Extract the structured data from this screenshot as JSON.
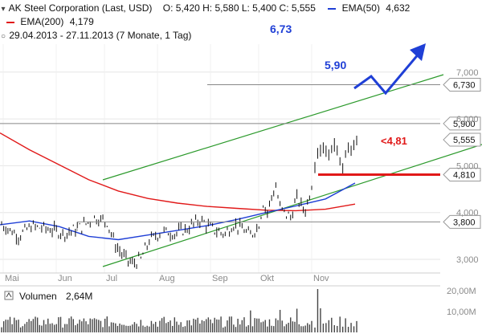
{
  "header": {
    "instrument": "AK Steel Corporation (Last, USD)",
    "ohlc": "O: 5,420  H: 5,580  L: 5,400  C: 5,555",
    "ema50_label": "EMA(50)",
    "ema50_value": "4,632",
    "ema200_label": "EMA(200)",
    "ema200_value": "4,179",
    "period": "29.04.2013 - 27.11.2013 (7 Monate, 1 Tag)"
  },
  "colors": {
    "price": "#111111",
    "ema50": "#1f3fd6",
    "ema200": "#e11919",
    "trend": "#2c9a2c",
    "support_line": "#888888",
    "forecast_arrow": "#1f3fd6",
    "stop_line": "#e11919",
    "volume": "#444444"
  },
  "chart_data": {
    "type": "line",
    "x_axis": {
      "labels": [
        "Mai",
        "Jun",
        "Jul",
        "Aug",
        "Sep",
        "Okt",
        "Nov"
      ]
    },
    "y_axis": {
      "ticks": [
        3,
        4,
        5,
        6,
        7
      ],
      "tick_labels": [
        "3,000",
        "4,000",
        "5,000",
        "6,000",
        "7,000"
      ],
      "ylim": [
        2.9,
        7.35
      ]
    },
    "series": [
      {
        "name": "AK Steel Corporation",
        "kind": "ohlc",
        "close": 5.555,
        "low_2013": 2.87
      },
      {
        "name": "EMA(50)",
        "values_sampled": [
          3.74,
          3.82,
          3.7,
          3.49,
          3.42,
          3.52,
          3.62,
          3.72,
          3.85,
          4.0,
          4.14,
          4.29,
          4.63
        ]
      },
      {
        "name": "EMA(200)",
        "values_sampled": [
          5.7,
          5.34,
          5.02,
          4.7,
          4.46,
          4.3,
          4.2,
          4.13,
          4.09,
          4.05,
          4.04,
          4.07,
          4.18
        ]
      }
    ],
    "levels": [
      {
        "label": "6,730",
        "value": 6.73,
        "annotation": "6,73"
      },
      {
        "label": "5,900",
        "value": 5.9,
        "annotation": "5,90"
      },
      {
        "label": "5,555",
        "value": 5.555
      },
      {
        "label": "4,810",
        "value": 4.81,
        "annotation": "<4,81"
      },
      {
        "label": "3,800",
        "value": 3.8
      }
    ],
    "volume": {
      "label": "Volumen",
      "last": "2,64M",
      "tick_labels": [
        "20,00M",
        "10,00M"
      ],
      "ymax_millions": 22
    }
  }
}
